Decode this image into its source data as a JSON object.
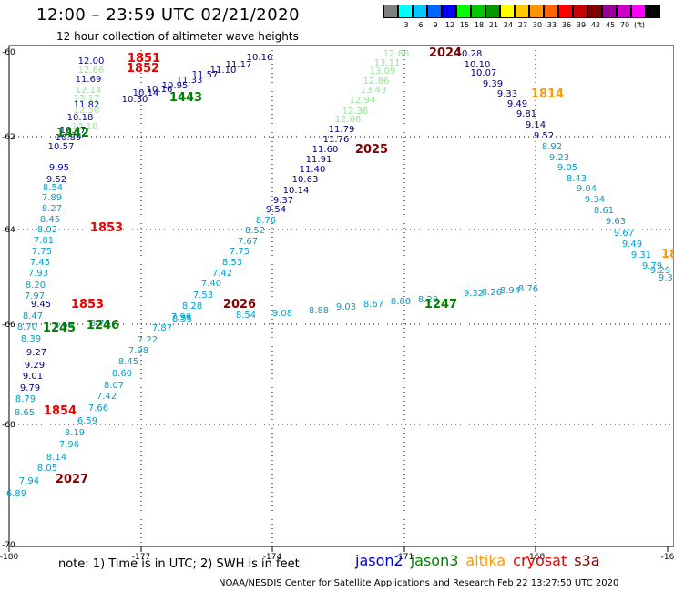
{
  "header": {
    "title": "12:00 – 23:59 UTC 02/21/2020",
    "subtitle": "12 hour collection of altimeter wave heights"
  },
  "colorbar": {
    "colors": [
      "#808080",
      "#00ffff",
      "#00c8ff",
      "#0064ff",
      "#0000ff",
      "#00ff00",
      "#00c800",
      "#009600",
      "#ffff00",
      "#ffc800",
      "#ff9600",
      "#ff6400",
      "#ff0000",
      "#c80000",
      "#800000",
      "#960096",
      "#c800c8",
      "#ff00ff",
      "#000000"
    ],
    "labels": [
      "3",
      "6",
      "9",
      "12",
      "15",
      "18",
      "21",
      "24",
      "27",
      "30",
      "33",
      "36",
      "39",
      "42",
      "45",
      "70",
      "(ft)"
    ]
  },
  "axes": {
    "xticks": [
      "-180",
      "-177",
      "-174",
      "-171",
      "-168",
      "-16"
    ],
    "yticks": [
      "-60",
      "-62",
      "-64",
      "-66",
      "-68",
      "-70"
    ]
  },
  "passes": [
    {
      "color": "#0000cc",
      "values": [
        "12.00",
        "11.69",
        "11.82",
        "10.18",
        "10.47",
        "10.89",
        "10.57",
        "9.95",
        "9.52"
      ]
    },
    {
      "color": "#90e890",
      "values": [
        "12.66",
        "12.14",
        "13.17",
        "12.50",
        "12.10"
      ]
    },
    {
      "color": "#00a0c8",
      "values": [
        "8.54",
        "7.89",
        "8.27",
        "8.45",
        "8.02",
        "7.81",
        "7.75",
        "7.45",
        "7.93",
        "8.20",
        "7.97",
        "8.47",
        "8.39"
      ]
    },
    {
      "color": "#000080",
      "values": [
        "9.45",
        "9.27",
        "9.29",
        "9.01",
        "9.79"
      ]
    },
    {
      "color": "#00a0c8",
      "values": [
        "8.79",
        "8.65"
      ]
    },
    {
      "color": "#00a0c8",
      "values": [
        "8.19",
        "7.96",
        "8.14",
        "8.05",
        "7.94",
        "6.89"
      ]
    },
    {
      "color": "#00a0c8",
      "values": [
        "6.59",
        "7.66",
        "7.42",
        "8.07",
        "8.60",
        "8.45",
        "7.98",
        "7.22",
        "7.87",
        "7.96",
        "8.28",
        "7.53",
        "7.40",
        "7.42",
        "8.53",
        "7.75",
        "7.67",
        "8.52",
        "8.76"
      ]
    },
    {
      "color": "#000080",
      "values": [
        "9.54",
        "9.37",
        "10.14",
        "10.63",
        "11.40",
        "11.91",
        "11.60",
        "11.76",
        "11.79"
      ]
    },
    {
      "color": "#90e890",
      "values": [
        "12.06",
        "12.36",
        "12.94",
        "13.43",
        "12.86",
        "13.09",
        "13.11",
        "12.86"
      ]
    },
    {
      "color": "#000080",
      "values": [
        "10.28",
        "10.10",
        "10.07",
        "9.39",
        "9.33",
        "9.49",
        "9.81",
        "9.14",
        "9.52"
      ]
    },
    {
      "color": "#00a0c8",
      "values": [
        "8.92",
        "9.23",
        "9.05",
        "8.43",
        "9.04",
        "9.34",
        "8.61",
        "9.63",
        "9.67",
        "9.49",
        "9.31",
        "9.79",
        "9.29",
        "9.31"
      ]
    },
    {
      "color": "#00a0c8",
      "values": [
        "8.70",
        "8.68",
        "8.79",
        "8.55",
        "8.54",
        "9.08",
        "8.88",
        "9.03",
        "8.67",
        "8.88",
        "8.29",
        "9.32",
        "8.26",
        "8.94",
        "8.76"
      ]
    },
    {
      "color": "#000080",
      "values": [
        "10.30",
        "10.14",
        "10.16",
        "10.95",
        "11.33",
        "11.57",
        "11.10",
        "11.17",
        "10.16"
      ]
    }
  ],
  "time_labels": [
    {
      "text": "1851",
      "color": "#ee0000"
    },
    {
      "text": "1852",
      "color": "#ee0000"
    },
    {
      "text": "1443",
      "color": "#008000"
    },
    {
      "text": "1442",
      "color": "#008000"
    },
    {
      "text": "1853",
      "color": "#ee0000"
    },
    {
      "text": "1853",
      "color": "#ee0000"
    },
    {
      "text": "1245",
      "color": "#008000"
    },
    {
      "text": "1246",
      "color": "#008000"
    },
    {
      "text": "1854",
      "color": "#ee0000"
    },
    {
      "text": "2027",
      "color": "#800000"
    },
    {
      "text": "2026",
      "color": "#800000"
    },
    {
      "text": "2025",
      "color": "#800000"
    },
    {
      "text": "2024",
      "color": "#800000"
    },
    {
      "text": "1814",
      "color": "#ff9900"
    },
    {
      "text": "1247",
      "color": "#008000"
    },
    {
      "text": "18",
      "color": "#ff9900"
    }
  ],
  "footer": {
    "note": "note:  1) Time is in UTC;  2) SWH is in feet",
    "legend": [
      {
        "name": "jason2",
        "color": "#0000cc"
      },
      {
        "name": "jason3",
        "color": "#008000"
      },
      {
        "name": "altika",
        "color": "#ff9900"
      },
      {
        "name": "cryosat",
        "color": "#ee0000"
      },
      {
        "name": "s3a",
        "color": "#800000"
      }
    ],
    "credit": "NOAA/NESDIS Center for Satellite Applications and Research    Feb 22 13:27:50 UTC 2020"
  }
}
